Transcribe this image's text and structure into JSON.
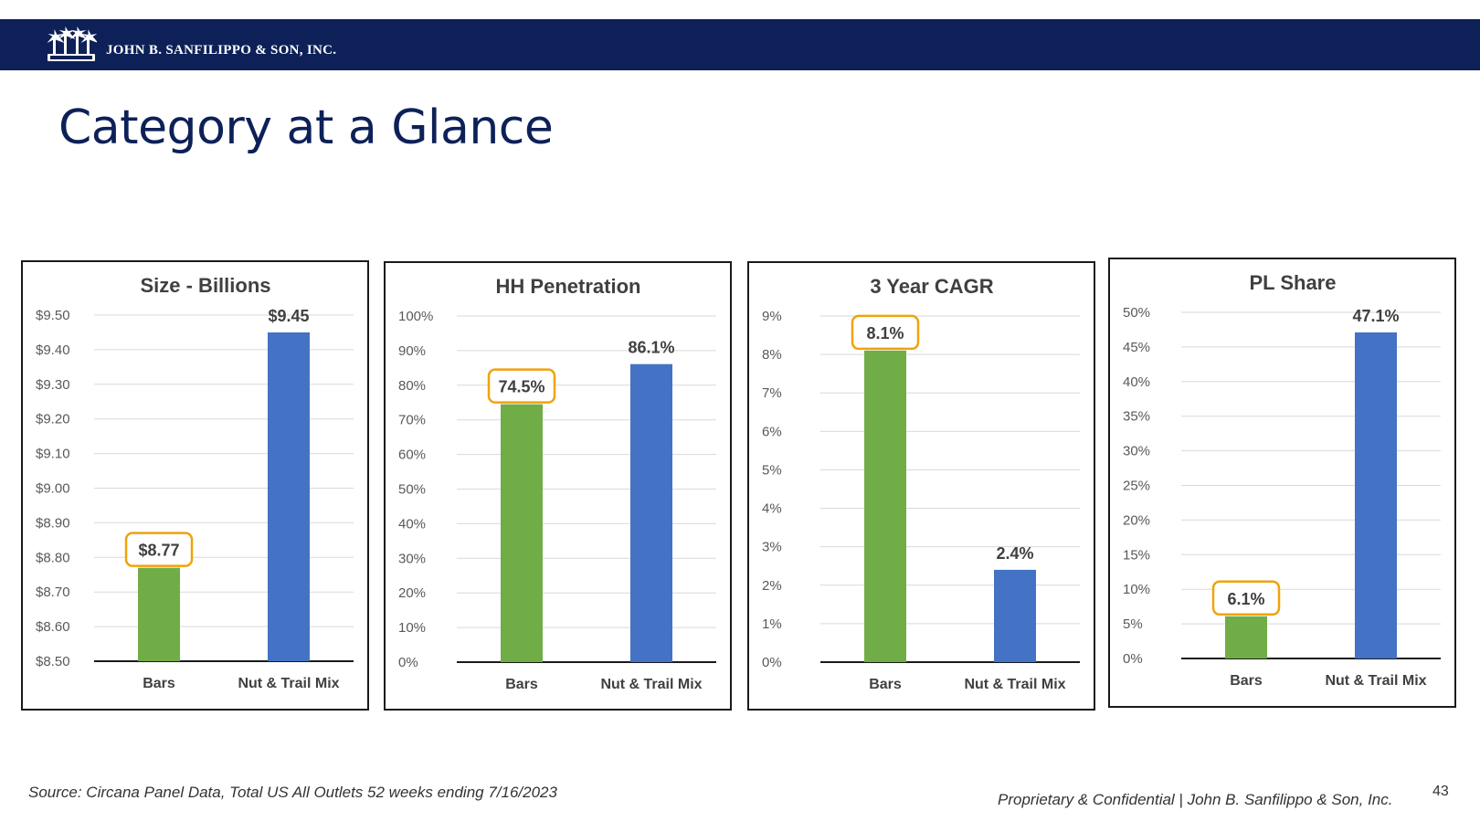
{
  "header": {
    "company_name": "JOHN B. SANFILIPPO & SON, INC.",
    "background_color": "#0d2158",
    "logo_icon": "palm-trees-logo-icon"
  },
  "page": {
    "title": "Category at a Glance"
  },
  "colors": {
    "bars_color": "#70ad47",
    "nut_trail_color": "#4472c4",
    "highlight_border": "#f0a30a",
    "title_color": "#0d2158"
  },
  "chart_data": [
    {
      "type": "bar",
      "title": "Size - Billions",
      "categories": [
        "Bars",
        "Nut & Trail Mix"
      ],
      "values": [
        8.77,
        9.45
      ],
      "value_labels": [
        "$8.77",
        "$9.45"
      ],
      "highlighted": [
        true,
        false
      ],
      "ylim": [
        8.5,
        9.5
      ],
      "yticks": [
        8.5,
        8.6,
        8.7,
        8.8,
        8.9,
        9.0,
        9.1,
        9.2,
        9.3,
        9.4,
        9.5
      ],
      "ytick_labels": [
        "$8.50",
        "$8.60",
        "$8.70",
        "$8.80",
        "$8.90",
        "$9.00",
        "$9.10",
        "$9.20",
        "$9.30",
        "$9.40",
        "$9.50"
      ],
      "xlabel": "",
      "ylabel": "",
      "grid": true
    },
    {
      "type": "bar",
      "title": "HH Penetration",
      "categories": [
        "Bars",
        "Nut & Trail Mix"
      ],
      "values": [
        74.5,
        86.1
      ],
      "value_labels": [
        "74.5%",
        "86.1%"
      ],
      "highlighted": [
        true,
        false
      ],
      "ylim": [
        0,
        100
      ],
      "yticks": [
        0,
        10,
        20,
        30,
        40,
        50,
        60,
        70,
        80,
        90,
        100
      ],
      "ytick_labels": [
        "0%",
        "10%",
        "20%",
        "30%",
        "40%",
        "50%",
        "60%",
        "70%",
        "80%",
        "90%",
        "100%"
      ],
      "xlabel": "",
      "ylabel": "",
      "grid": true
    },
    {
      "type": "bar",
      "title": "3 Year CAGR",
      "categories": [
        "Bars",
        "Nut & Trail Mix"
      ],
      "values": [
        8.1,
        2.4
      ],
      "value_labels": [
        "8.1%",
        "2.4%"
      ],
      "highlighted": [
        true,
        false
      ],
      "ylim": [
        0,
        9
      ],
      "yticks": [
        0,
        1,
        2,
        3,
        4,
        5,
        6,
        7,
        8,
        9
      ],
      "ytick_labels": [
        "0%",
        "1%",
        "2%",
        "3%",
        "4%",
        "5%",
        "6%",
        "7%",
        "8%",
        "9%"
      ],
      "xlabel": "",
      "ylabel": "",
      "grid": true
    },
    {
      "type": "bar",
      "title": "PL Share",
      "categories": [
        "Bars",
        "Nut & Trail Mix"
      ],
      "values": [
        6.1,
        47.1
      ],
      "value_labels": [
        "6.1%",
        "47.1%"
      ],
      "highlighted": [
        true,
        false
      ],
      "ylim": [
        0,
        50
      ],
      "yticks": [
        0,
        5,
        10,
        15,
        20,
        25,
        30,
        35,
        40,
        45,
        50
      ],
      "ytick_labels": [
        "0%",
        "5%",
        "10%",
        "15%",
        "20%",
        "25%",
        "30%",
        "35%",
        "40%",
        "45%",
        "50%"
      ],
      "xlabel": "",
      "ylabel": "",
      "grid": true
    }
  ],
  "footer": {
    "source": "Source: Circana Panel Data, Total US All Outlets 52 weeks ending 7/16/2023",
    "confidential": "Proprietary & Confidential | John B. Sanfilippo & Son, Inc.",
    "page_number": "43"
  }
}
